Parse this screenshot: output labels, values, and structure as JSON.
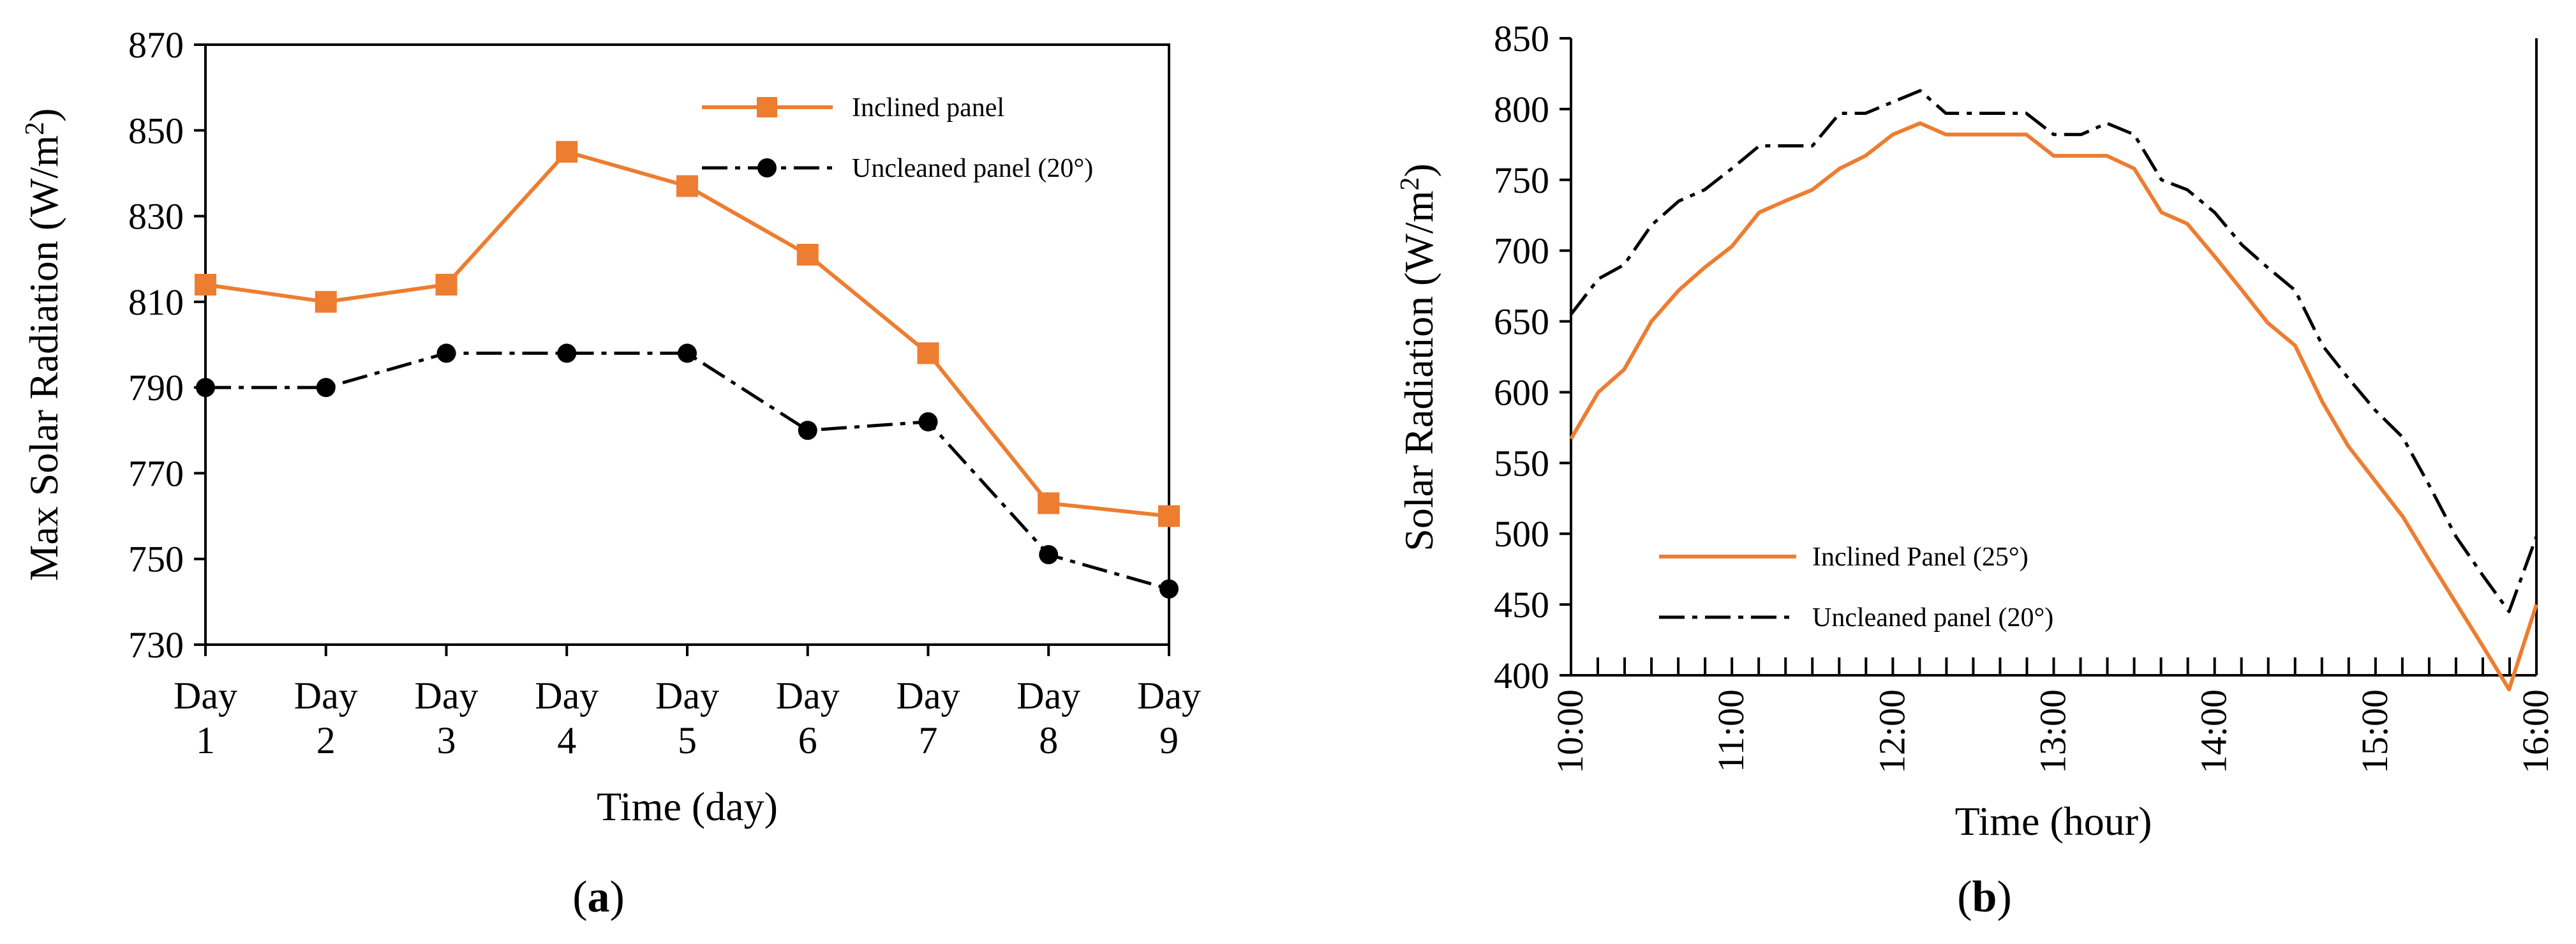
{
  "figure": {
    "panel_a_label": "a",
    "panel_b_label": "b"
  },
  "chart_data": [
    {
      "type": "line",
      "panel": "a",
      "xlabel": "Time (day)",
      "ylabel": "Max Solar Radiation (W/m²)",
      "ylabel_main": "Max Solar Radiation (W/m",
      "ylabel_sup": "2",
      "ylabel_close": ")",
      "ylim": [
        730,
        870
      ],
      "yticks": [
        730,
        750,
        770,
        790,
        810,
        830,
        850,
        870
      ],
      "categories": [
        "Day 1",
        "Day 2",
        "Day 3",
        "Day 4",
        "Day 5",
        "Day 6",
        "Day 7",
        "Day 8",
        "Day 9"
      ],
      "category_lines": [
        [
          "Day",
          "1"
        ],
        [
          "Day",
          "2"
        ],
        [
          "Day",
          "3"
        ],
        [
          "Day",
          "4"
        ],
        [
          "Day",
          "5"
        ],
        [
          "Day",
          "6"
        ],
        [
          "Day",
          "7"
        ],
        [
          "Day",
          "8"
        ],
        [
          "Day",
          "9"
        ]
      ],
      "legend_position": "top-right",
      "series": [
        {
          "name": "Inclined panel",
          "color": "#ED7D31",
          "marker": "square",
          "line": "solid",
          "values": [
            814,
            810,
            814,
            845,
            837,
            821,
            798,
            763,
            760
          ]
        },
        {
          "name": "Uncleaned panel (20°)",
          "color": "#000000",
          "marker": "circle",
          "line": "dashdot",
          "values": [
            790,
            790,
            798,
            798,
            798,
            780,
            782,
            751,
            743
          ]
        }
      ]
    },
    {
      "type": "line",
      "panel": "b",
      "xlabel": "Time (hour)",
      "ylabel": "Solar Radiation (W/m²)",
      "ylabel_main": "Solar Radiation (W/m",
      "ylabel_sup": "2",
      "ylabel_close": ")",
      "xlim": [
        10,
        16
      ],
      "xtick_labels": [
        "10:00",
        "11:00",
        "12:00",
        "13:00",
        "14:00",
        "15:00",
        "16:00"
      ],
      "minor_ticks_per_hour": 6,
      "ylim": [
        400,
        850
      ],
      "yticks": [
        400,
        450,
        500,
        550,
        600,
        650,
        700,
        750,
        800,
        850
      ],
      "legend_position": "bottom-left",
      "series": [
        {
          "name": "Inclined Panel (25°)",
          "color": "#ED7D31",
          "line": "solid",
          "x": [
            10.0,
            10.17,
            10.33,
            10.5,
            10.67,
            10.83,
            11.0,
            11.17,
            11.33,
            11.5,
            11.67,
            11.83,
            12.0,
            12.17,
            12.33,
            12.5,
            12.67,
            12.83,
            13.0,
            13.17,
            13.33,
            13.5,
            13.67,
            13.83,
            14.0,
            14.17,
            14.33,
            14.5,
            14.67,
            14.83,
            15.0,
            15.17,
            15.33,
            15.5,
            15.67,
            15.83,
            16.0
          ],
          "values": [
            567,
            600,
            616,
            650,
            672,
            688,
            703,
            727,
            735,
            743,
            758,
            767,
            782,
            790,
            782,
            782,
            782,
            782,
            767,
            767,
            767,
            758,
            727,
            719,
            696,
            672,
            649,
            633,
            593,
            562,
            537,
            512,
            482,
            451,
            420,
            390,
            450
          ]
        },
        {
          "name": "Uncleaned panel (20°)",
          "color": "#000000",
          "line": "dashdot",
          "x": [
            10.0,
            10.17,
            10.33,
            10.5,
            10.67,
            10.83,
            11.0,
            11.17,
            11.33,
            11.5,
            11.67,
            11.83,
            12.0,
            12.17,
            12.33,
            12.5,
            12.67,
            12.83,
            13.0,
            13.17,
            13.33,
            13.5,
            13.67,
            13.83,
            14.0,
            14.17,
            14.33,
            14.5,
            14.67,
            14.83,
            15.0,
            15.17,
            15.33,
            15.5,
            15.67,
            15.83,
            16.0
          ],
          "values": [
            655,
            680,
            690,
            718,
            735,
            743,
            758,
            774,
            774,
            774,
            797,
            797,
            805,
            813,
            797,
            797,
            797,
            797,
            782,
            782,
            790,
            782,
            750,
            743,
            727,
            704,
            688,
            672,
            633,
            610,
            587,
            568,
            535,
            498,
            470,
            445,
            498
          ]
        }
      ]
    }
  ]
}
